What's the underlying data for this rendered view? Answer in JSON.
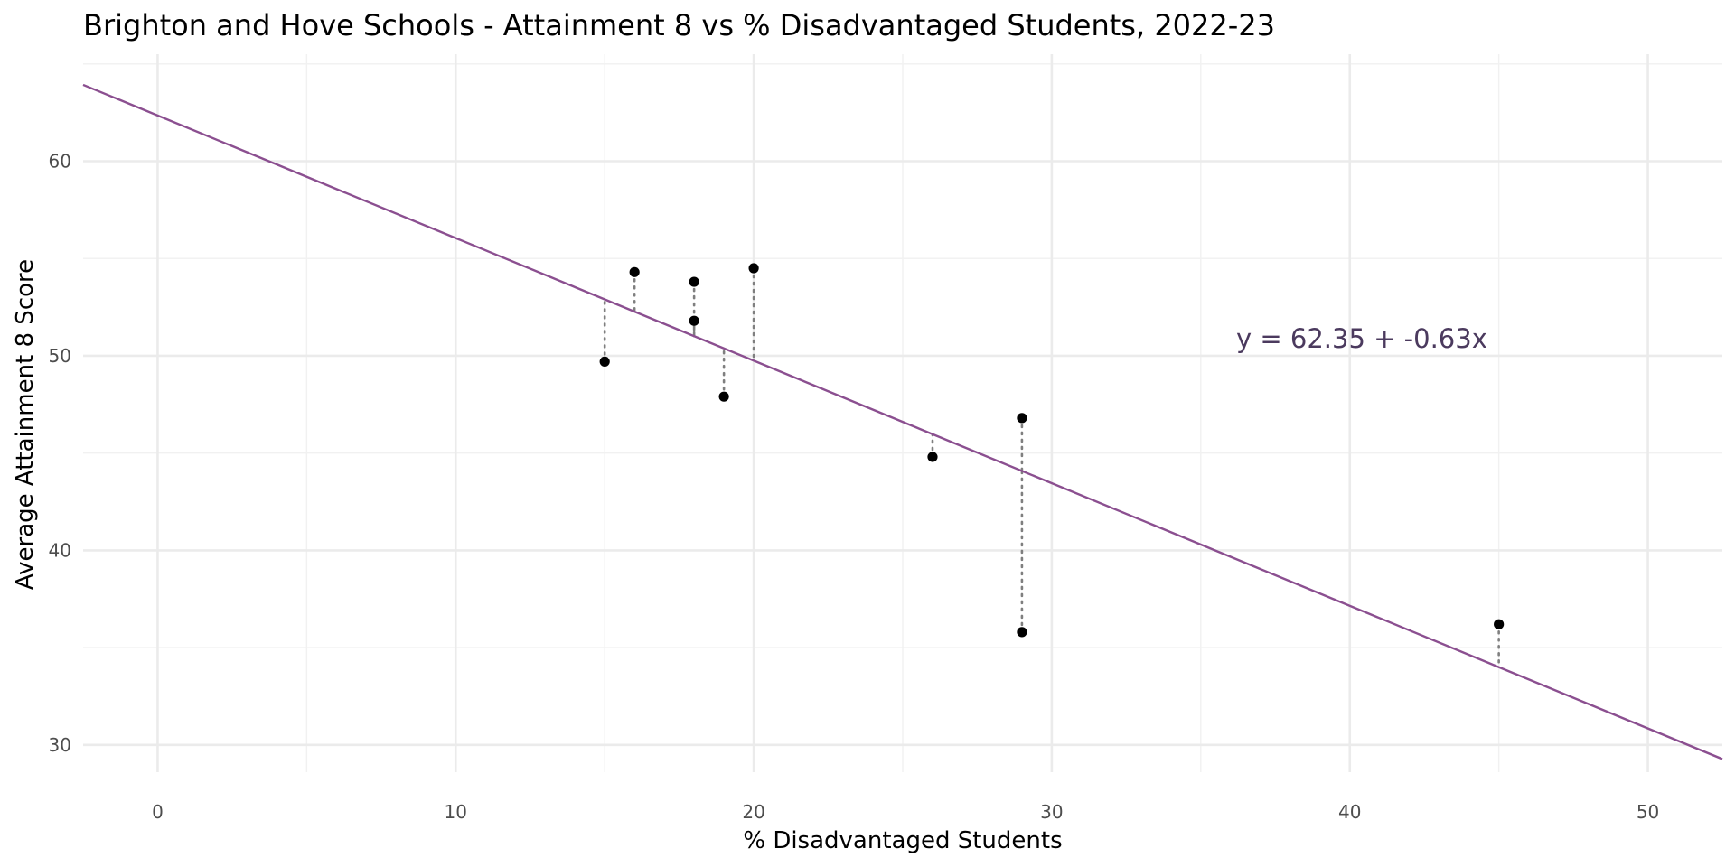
{
  "chart_data": {
    "type": "scatter",
    "title": "Brighton and Hove Schools - Attainment 8 vs % Disadvantaged Students, 2022-23",
    "xlabel": "% Disadvantaged Students",
    "ylabel": "Average Attainment 8 Score",
    "xlim": [
      -2.5,
      52.5
    ],
    "ylim": [
      28.6,
      65.5
    ],
    "x_ticks": [
      0,
      10,
      20,
      30,
      40,
      50
    ],
    "y_ticks": [
      30,
      40,
      50,
      60
    ],
    "x_tick_labels": [
      "0",
      "10",
      "20",
      "30",
      "40",
      "50"
    ],
    "y_tick_labels": [
      "30",
      "40",
      "50",
      "60"
    ],
    "grid": true,
    "points": [
      {
        "x": 15,
        "y": 49.7
      },
      {
        "x": 16,
        "y": 54.3
      },
      {
        "x": 18,
        "y": 53.8
      },
      {
        "x": 18,
        "y": 51.8
      },
      {
        "x": 19,
        "y": 47.9
      },
      {
        "x": 20,
        "y": 54.5
      },
      {
        "x": 26,
        "y": 44.8
      },
      {
        "x": 29,
        "y": 46.8
      },
      {
        "x": 29,
        "y": 35.8
      },
      {
        "x": 45,
        "y": 36.2
      }
    ],
    "regression": {
      "intercept": 62.35,
      "slope": -0.63
    },
    "equation_label": "y = 62.35 + -0.63x",
    "residuals_shown": true,
    "colors": {
      "line": "#8b4f90",
      "points": "#000000",
      "residuals": "#7f7f7f",
      "equation": "#4b3a5e"
    }
  }
}
